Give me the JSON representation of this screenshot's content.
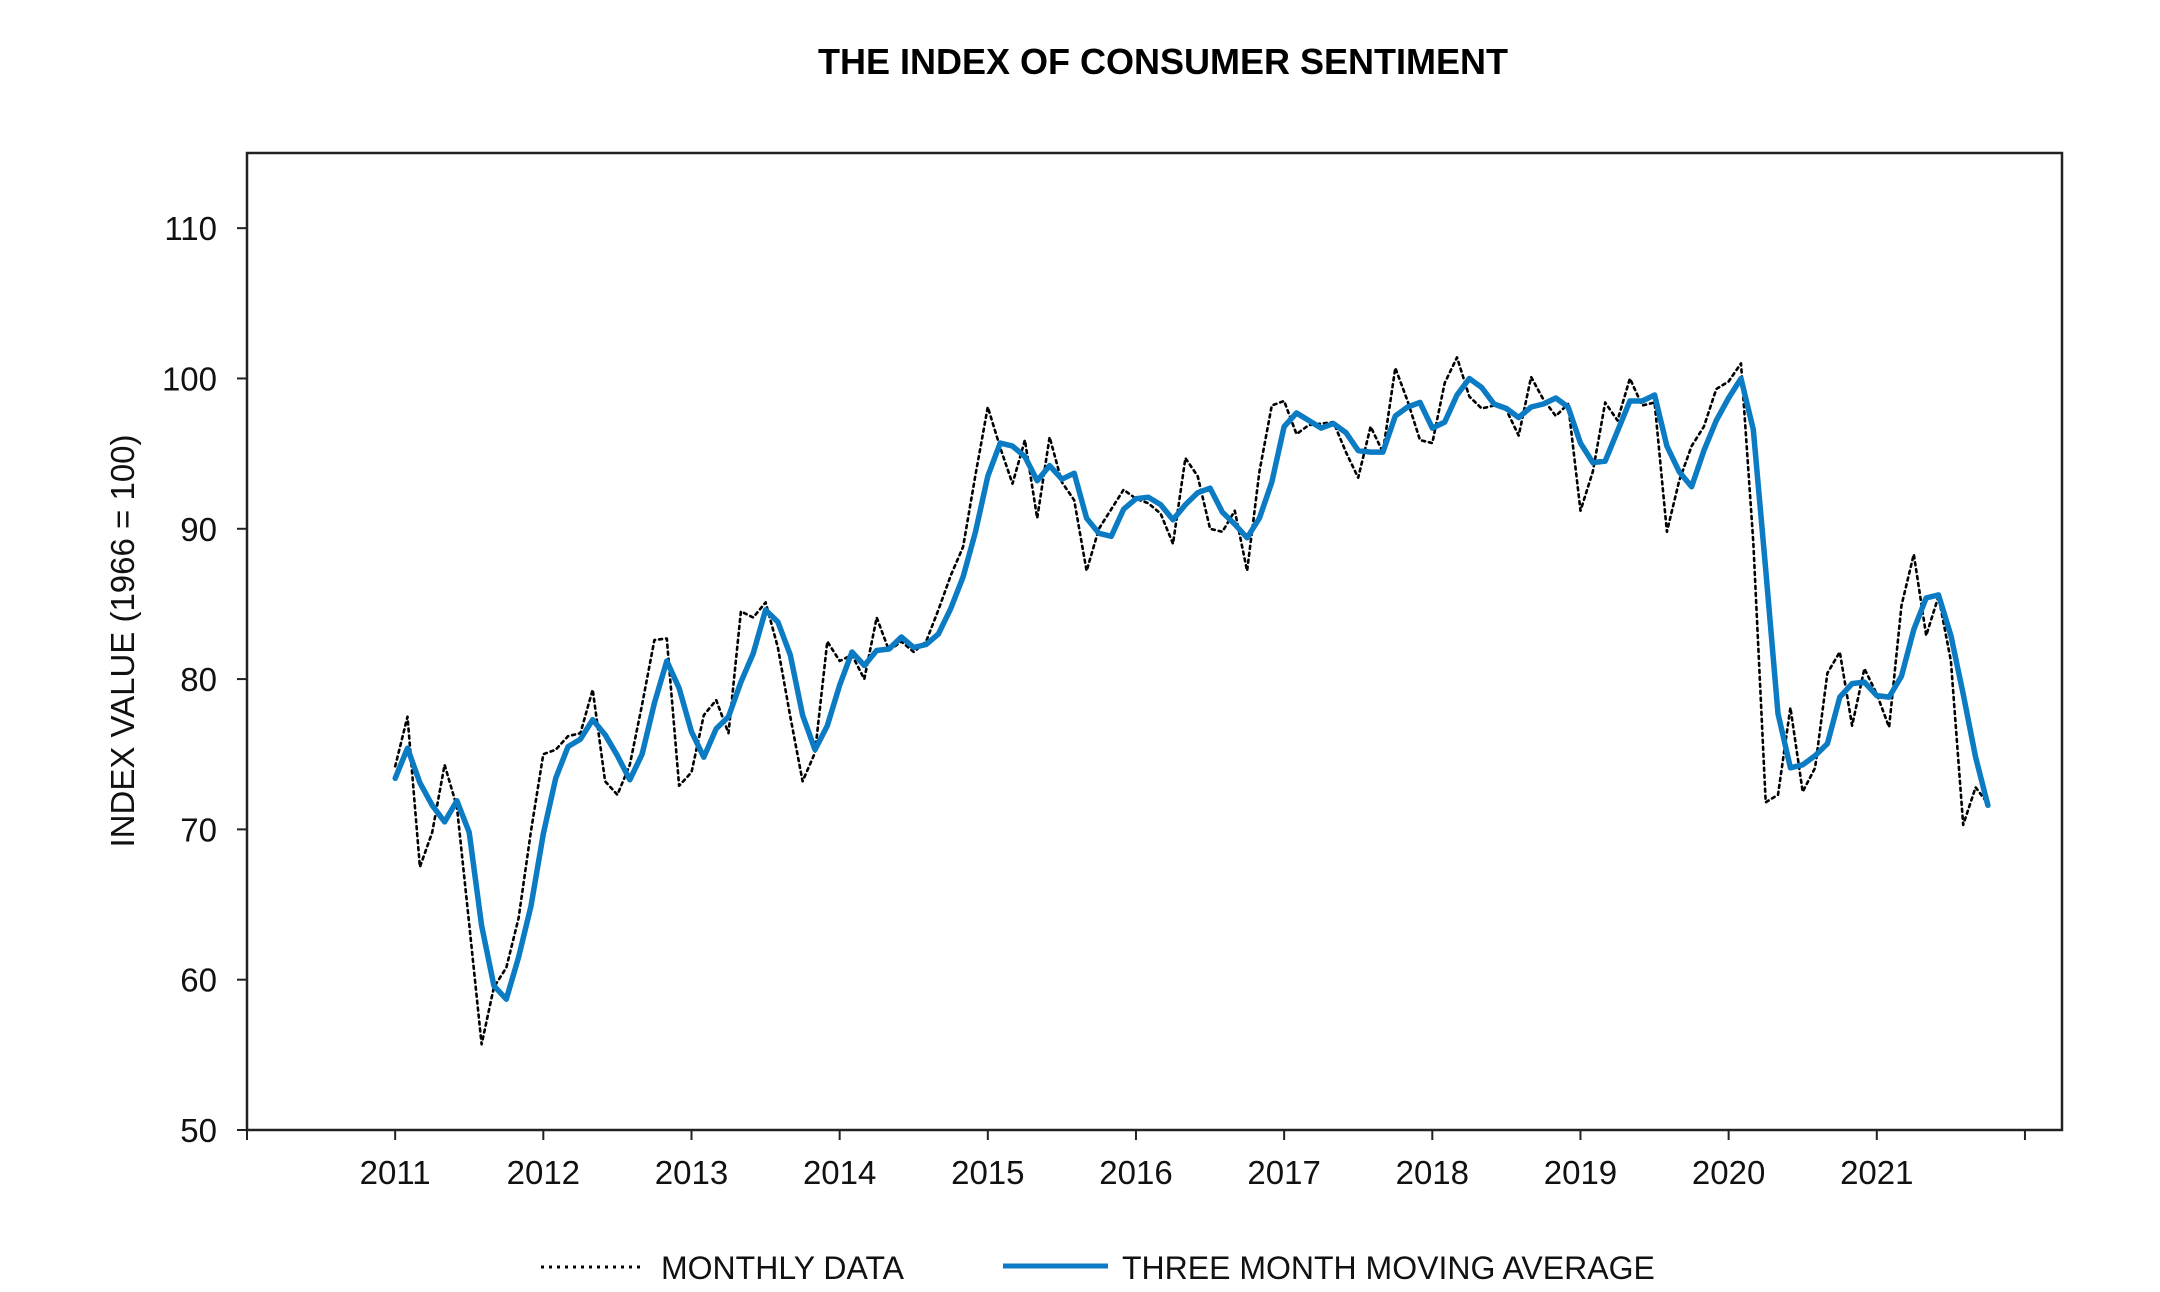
{
  "chart_data": {
    "type": "line",
    "title": "THE INDEX OF CONSUMER SENTIMENT",
    "xlabel": "",
    "ylabel": "INDEX VALUE (1966 = 100)",
    "ylim": [
      50,
      115
    ],
    "xlim": [
      "2010-01",
      "2022-04"
    ],
    "y_ticks": [
      50,
      60,
      70,
      80,
      90,
      100,
      110
    ],
    "x_ticks": [
      "2011",
      "2012",
      "2013",
      "2014",
      "2015",
      "2016",
      "2017",
      "2018",
      "2019",
      "2020",
      "2021"
    ],
    "grid": false,
    "legend_position": "bottom",
    "x": [
      "2011-01",
      "2011-02",
      "2011-03",
      "2011-04",
      "2011-05",
      "2011-06",
      "2011-07",
      "2011-08",
      "2011-09",
      "2011-10",
      "2011-11",
      "2011-12",
      "2012-01",
      "2012-02",
      "2012-03",
      "2012-04",
      "2012-05",
      "2012-06",
      "2012-07",
      "2012-08",
      "2012-09",
      "2012-10",
      "2012-11",
      "2012-12",
      "2013-01",
      "2013-02",
      "2013-03",
      "2013-04",
      "2013-05",
      "2013-06",
      "2013-07",
      "2013-08",
      "2013-09",
      "2013-10",
      "2013-11",
      "2013-12",
      "2014-01",
      "2014-02",
      "2014-03",
      "2014-04",
      "2014-05",
      "2014-06",
      "2014-07",
      "2014-08",
      "2014-09",
      "2014-10",
      "2014-11",
      "2014-12",
      "2015-01",
      "2015-02",
      "2015-03",
      "2015-04",
      "2015-05",
      "2015-06",
      "2015-07",
      "2015-08",
      "2015-09",
      "2015-10",
      "2015-11",
      "2015-12",
      "2016-01",
      "2016-02",
      "2016-03",
      "2016-04",
      "2016-05",
      "2016-06",
      "2016-07",
      "2016-08",
      "2016-09",
      "2016-10",
      "2016-11",
      "2016-12",
      "2017-01",
      "2017-02",
      "2017-03",
      "2017-04",
      "2017-05",
      "2017-06",
      "2017-07",
      "2017-08",
      "2017-09",
      "2017-10",
      "2017-11",
      "2017-12",
      "2018-01",
      "2018-02",
      "2018-03",
      "2018-04",
      "2018-05",
      "2018-06",
      "2018-07",
      "2018-08",
      "2018-09",
      "2018-10",
      "2018-11",
      "2018-12",
      "2019-01",
      "2019-02",
      "2019-03",
      "2019-04",
      "2019-05",
      "2019-06",
      "2019-07",
      "2019-08",
      "2019-09",
      "2019-10",
      "2019-11",
      "2019-12",
      "2020-01",
      "2020-02",
      "2020-03",
      "2020-04",
      "2020-05",
      "2020-06",
      "2020-07",
      "2020-08",
      "2020-09",
      "2020-10",
      "2020-11",
      "2020-12",
      "2021-01",
      "2021-02",
      "2021-03",
      "2021-04",
      "2021-05",
      "2021-06",
      "2021-07",
      "2021-08",
      "2021-09",
      "2021-10"
    ],
    "series": [
      {
        "name": "MONTHLY DATA",
        "color": "#000000",
        "style": "dotted",
        "values": [
          74.2,
          77.5,
          67.5,
          69.8,
          74.3,
          71.5,
          63.7,
          55.7,
          59.5,
          60.8,
          64.1,
          69.9,
          75.0,
          75.3,
          76.2,
          76.4,
          79.3,
          73.2,
          72.3,
          74.3,
          78.3,
          82.6,
          82.7,
          72.9,
          73.8,
          77.6,
          78.6,
          76.4,
          84.5,
          84.1,
          85.1,
          82.1,
          77.5,
          73.2,
          75.1,
          82.5,
          81.2,
          81.6,
          80.0,
          84.1,
          81.9,
          82.5,
          81.8,
          82.5,
          84.6,
          86.9,
          88.8,
          93.6,
          98.1,
          95.4,
          93.0,
          95.9,
          90.7,
          96.1,
          93.1,
          91.9,
          87.2,
          90.0,
          91.3,
          92.6,
          92.0,
          91.7,
          91.0,
          89.0,
          94.7,
          93.5,
          90.0,
          89.8,
          91.2,
          87.2,
          93.8,
          98.2,
          98.5,
          96.3,
          96.9,
          97.0,
          97.1,
          95.1,
          93.4,
          96.8,
          95.1,
          100.7,
          98.5,
          95.9,
          95.7,
          99.7,
          101.4,
          98.8,
          98.0,
          98.2,
          97.9,
          96.2,
          100.1,
          98.6,
          97.5,
          98.3,
          91.2,
          93.8,
          98.4,
          97.2,
          100.0,
          98.2,
          98.4,
          89.8,
          93.2,
          95.5,
          96.8,
          99.3,
          99.8,
          101.0,
          89.1,
          71.8,
          72.3,
          78.1,
          72.5,
          74.1,
          80.4,
          81.8,
          76.9,
          80.7,
          79.0,
          76.8,
          84.9,
          88.3,
          82.9,
          85.5,
          81.2,
          70.3,
          72.8,
          71.7
        ]
      },
      {
        "name": "THREE MONTH MOVING AVERAGE",
        "color": "#0B7BC4",
        "style": "solid",
        "values": [
          73.4,
          75.4,
          73.1,
          71.6,
          70.5,
          71.9,
          69.8,
          63.6,
          59.6,
          58.7,
          61.5,
          64.9,
          69.7,
          73.4,
          75.5,
          76.0,
          77.3,
          76.3,
          74.9,
          73.3,
          75.0,
          78.4,
          81.2,
          79.4,
          76.5,
          74.8,
          76.7,
          77.5,
          79.8,
          81.7,
          84.6,
          83.8,
          81.6,
          77.6,
          75.3,
          76.9,
          79.6,
          81.8,
          80.9,
          81.9,
          82.0,
          82.8,
          82.1,
          82.3,
          83.0,
          84.7,
          86.8,
          89.8,
          93.5,
          95.7,
          95.5,
          94.8,
          93.2,
          94.2,
          93.3,
          93.7,
          90.7,
          89.7,
          89.5,
          91.3,
          92.0,
          92.1,
          91.6,
          90.6,
          91.6,
          92.4,
          92.7,
          91.1,
          90.3,
          89.4,
          90.7,
          93.1,
          96.8,
          97.7,
          97.2,
          96.7,
          97.0,
          96.4,
          95.2,
          95.1,
          95.1,
          97.5,
          98.1,
          98.4,
          96.7,
          97.1,
          98.9,
          100.0,
          99.4,
          98.3,
          98.0,
          97.4,
          98.1,
          98.3,
          98.7,
          98.1,
          95.7,
          94.4,
          94.5,
          96.5,
          98.5,
          98.5,
          98.9,
          95.5,
          93.8,
          92.8,
          95.2,
          97.2,
          98.7,
          100.0,
          96.6,
          87.3,
          77.7,
          74.1,
          74.3,
          74.9,
          75.7,
          78.8,
          79.7,
          79.8,
          78.9,
          78.8,
          80.2,
          83.3,
          85.4,
          85.6,
          82.9,
          79.0,
          74.8,
          71.6
        ]
      }
    ]
  }
}
